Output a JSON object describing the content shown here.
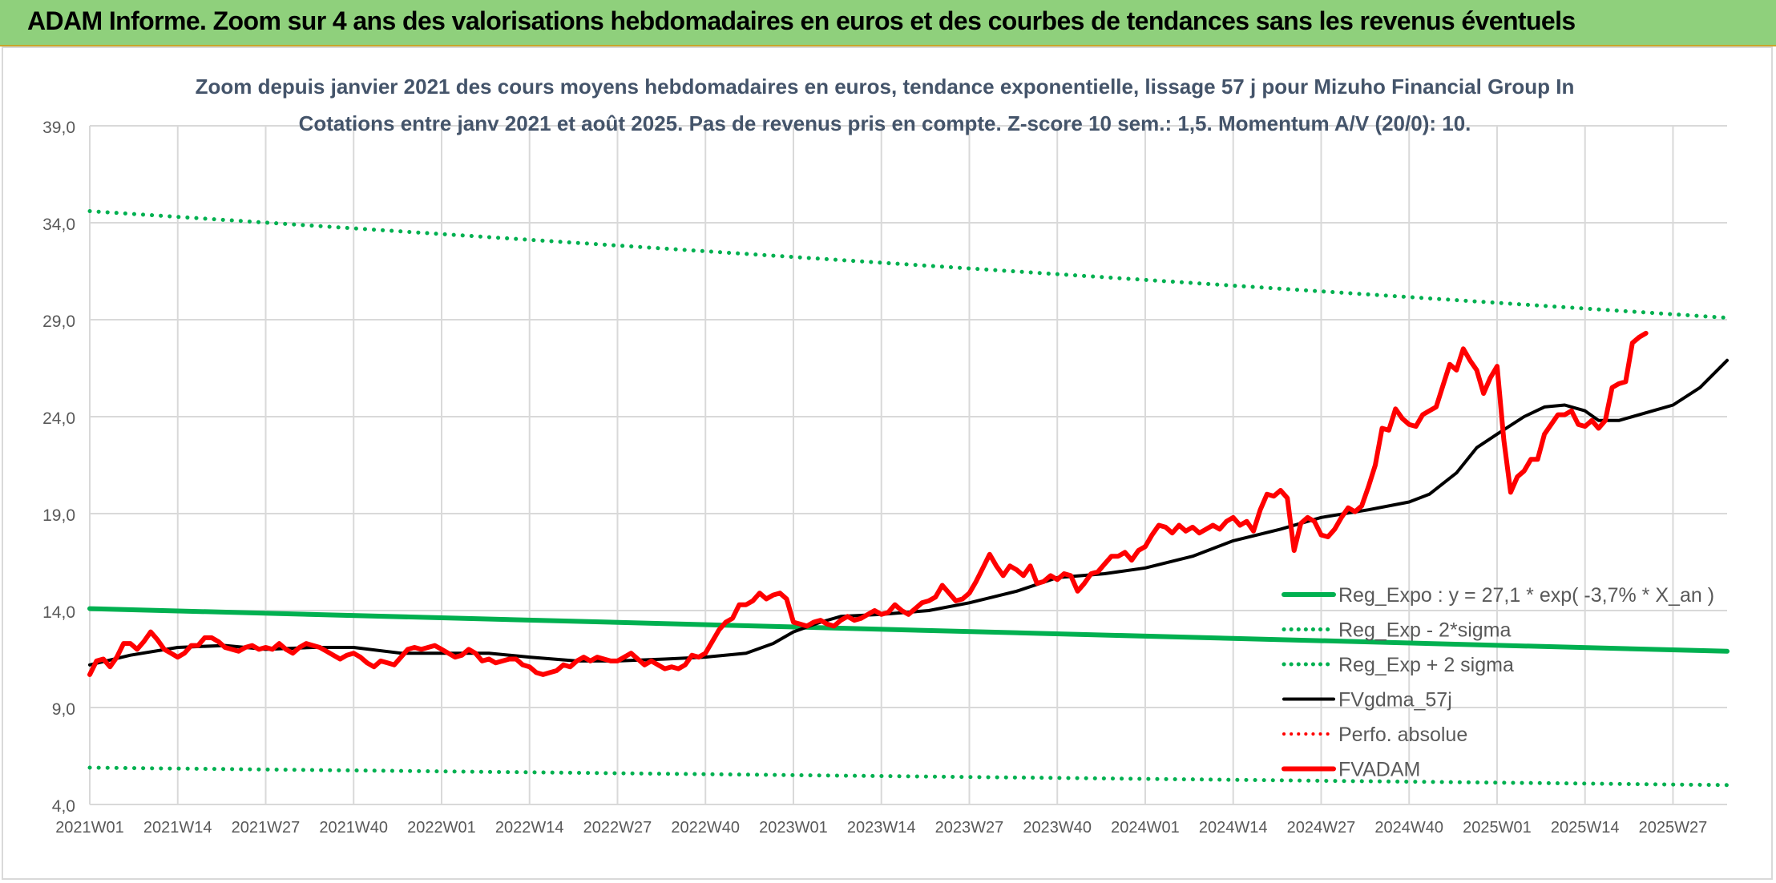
{
  "banner": {
    "title": "ADAM Informe. Zoom sur 4 ans des valorisations hebdomadaires en euros et des courbes de tendances sans les revenus éventuels"
  },
  "colors": {
    "banner_bg": "#8fd07c",
    "green_trend": "#00b050",
    "black_smooth": "#000000",
    "red_price": "#ff0000",
    "grid": "#d9d9d9",
    "axis_text": "#595959",
    "title_text": "#44546a"
  },
  "chart_data": {
    "type": "line",
    "title_line1": "Zoom depuis janvier 2021 des cours moyens hebdomadaires en euros, tendance exponentielle, lissage 57 j pour Mizuho Financial Group In",
    "title_line2": "Cotations entre janv 2021 et août 2025. Pas de revenus pris en compte. Z-score 10 sem.: 1,5. Momentum A/V (20/0): 10.",
    "ylim": [
      4.0,
      39.0
    ],
    "y_ticks": [
      "4,0",
      "9,0",
      "14,0",
      "19,0",
      "24,0",
      "29,0",
      "34,0",
      "39,0"
    ],
    "x_tick_labels": [
      "2021W01",
      "2021W14",
      "2021W27",
      "2021W40",
      "2022W01",
      "2022W14",
      "2022W27",
      "2022W40",
      "2023W01",
      "2023W14",
      "2023W27",
      "2023W40",
      "2024W01",
      "2024W14",
      "2024W27",
      "2024W40",
      "2025W01",
      "2025W14",
      "2025W27"
    ],
    "x_tick_weeks": [
      0,
      13,
      26,
      39,
      52,
      65,
      78,
      91,
      104,
      117,
      130,
      143,
      156,
      169,
      182,
      195,
      208,
      221,
      234
    ],
    "n_weeks": 243,
    "grid": true,
    "legend_position": "bottom-right",
    "series": [
      {
        "name": "Reg_Expo : y = 27,1 * exp( -3,7% *  X_an )",
        "style": "solid",
        "color": "#00b050",
        "width": 6,
        "points": [
          [
            0,
            14.1
          ],
          [
            242,
            11.9
          ]
        ]
      },
      {
        "name": "Reg_Exp - 2*sigma",
        "style": "dotted",
        "color": "#00b050",
        "width": 5,
        "points": [
          [
            0,
            5.9
          ],
          [
            242,
            5.0
          ]
        ]
      },
      {
        "name": "Reg_Exp + 2 sigma",
        "style": "dotted",
        "color": "#00b050",
        "width": 5,
        "points": [
          [
            0,
            34.6
          ],
          [
            242,
            29.1
          ]
        ]
      },
      {
        "name": "FVgdma_57j",
        "style": "solid",
        "color": "#000000",
        "width": 4,
        "points": [
          [
            0,
            11.2
          ],
          [
            6,
            11.7
          ],
          [
            13,
            12.1
          ],
          [
            20,
            12.2
          ],
          [
            26,
            12.0
          ],
          [
            33,
            12.1
          ],
          [
            39,
            12.1
          ],
          [
            46,
            11.8
          ],
          [
            52,
            11.8
          ],
          [
            59,
            11.8
          ],
          [
            65,
            11.6
          ],
          [
            72,
            11.4
          ],
          [
            78,
            11.4
          ],
          [
            85,
            11.5
          ],
          [
            91,
            11.6
          ],
          [
            97,
            11.8
          ],
          [
            101,
            12.3
          ],
          [
            104,
            12.9
          ],
          [
            108,
            13.4
          ],
          [
            111,
            13.7
          ],
          [
            117,
            13.8
          ],
          [
            124,
            14.0
          ],
          [
            130,
            14.4
          ],
          [
            137,
            15.0
          ],
          [
            143,
            15.7
          ],
          [
            150,
            15.9
          ],
          [
            156,
            16.2
          ],
          [
            163,
            16.8
          ],
          [
            169,
            17.6
          ],
          [
            176,
            18.2
          ],
          [
            182,
            18.8
          ],
          [
            189,
            19.2
          ],
          [
            195,
            19.6
          ],
          [
            198,
            20.0
          ],
          [
            202,
            21.1
          ],
          [
            205,
            22.4
          ],
          [
            208,
            23.1
          ],
          [
            212,
            24.0
          ],
          [
            215,
            24.5
          ],
          [
            218,
            24.6
          ],
          [
            221,
            24.3
          ],
          [
            223,
            23.8
          ],
          [
            226,
            23.8
          ],
          [
            229,
            24.1
          ],
          [
            234,
            24.6
          ],
          [
            238,
            25.5
          ],
          [
            242,
            26.9
          ]
        ]
      },
      {
        "name": "Perfo. absolue",
        "style": "dotted",
        "color": "#ff0000",
        "width": 4,
        "points": []
      },
      {
        "name": "FVADAM",
        "style": "solid",
        "color": "#ff0000",
        "width": 6,
        "points": [
          [
            0,
            10.7
          ],
          [
            1,
            11.4
          ],
          [
            2,
            11.5
          ],
          [
            3,
            11.1
          ],
          [
            4,
            11.6
          ],
          [
            5,
            12.3
          ],
          [
            6,
            12.3
          ],
          [
            7,
            12.0
          ],
          [
            8,
            12.4
          ],
          [
            9,
            12.9
          ],
          [
            10,
            12.5
          ],
          [
            11,
            12.0
          ],
          [
            12,
            11.8
          ],
          [
            13,
            11.6
          ],
          [
            14,
            11.8
          ],
          [
            15,
            12.2
          ],
          [
            16,
            12.2
          ],
          [
            17,
            12.6
          ],
          [
            18,
            12.6
          ],
          [
            19,
            12.4
          ],
          [
            20,
            12.1
          ],
          [
            21,
            12.0
          ],
          [
            22,
            11.9
          ],
          [
            23,
            12.1
          ],
          [
            24,
            12.2
          ],
          [
            25,
            12.0
          ],
          [
            26,
            12.1
          ],
          [
            27,
            12.0
          ],
          [
            28,
            12.3
          ],
          [
            29,
            12.0
          ],
          [
            30,
            11.8
          ],
          [
            31,
            12.1
          ],
          [
            32,
            12.3
          ],
          [
            33,
            12.2
          ],
          [
            34,
            12.1
          ],
          [
            35,
            11.9
          ],
          [
            36,
            11.7
          ],
          [
            37,
            11.5
          ],
          [
            38,
            11.7
          ],
          [
            39,
            11.8
          ],
          [
            40,
            11.6
          ],
          [
            41,
            11.3
          ],
          [
            42,
            11.1
          ],
          [
            43,
            11.4
          ],
          [
            44,
            11.3
          ],
          [
            45,
            11.2
          ],
          [
            46,
            11.6
          ],
          [
            47,
            12.0
          ],
          [
            48,
            12.1
          ],
          [
            49,
            12.0
          ],
          [
            50,
            12.1
          ],
          [
            51,
            12.2
          ],
          [
            52,
            12.0
          ],
          [
            53,
            11.8
          ],
          [
            54,
            11.6
          ],
          [
            55,
            11.7
          ],
          [
            56,
            12.0
          ],
          [
            57,
            11.8
          ],
          [
            58,
            11.4
          ],
          [
            59,
            11.5
          ],
          [
            60,
            11.3
          ],
          [
            61,
            11.4
          ],
          [
            62,
            11.5
          ],
          [
            63,
            11.5
          ],
          [
            64,
            11.2
          ],
          [
            65,
            11.1
          ],
          [
            66,
            10.8
          ],
          [
            67,
            10.7
          ],
          [
            68,
            10.8
          ],
          [
            69,
            10.9
          ],
          [
            70,
            11.2
          ],
          [
            71,
            11.1
          ],
          [
            72,
            11.4
          ],
          [
            73,
            11.6
          ],
          [
            74,
            11.4
          ],
          [
            75,
            11.6
          ],
          [
            76,
            11.5
          ],
          [
            77,
            11.4
          ],
          [
            78,
            11.4
          ],
          [
            79,
            11.6
          ],
          [
            80,
            11.8
          ],
          [
            81,
            11.5
          ],
          [
            82,
            11.2
          ],
          [
            83,
            11.4
          ],
          [
            84,
            11.2
          ],
          [
            85,
            11.0
          ],
          [
            86,
            11.1
          ],
          [
            87,
            11.0
          ],
          [
            88,
            11.2
          ],
          [
            89,
            11.7
          ],
          [
            90,
            11.6
          ],
          [
            91,
            11.8
          ],
          [
            92,
            12.4
          ],
          [
            93,
            13.0
          ],
          [
            94,
            13.4
          ],
          [
            95,
            13.6
          ],
          [
            96,
            14.3
          ],
          [
            97,
            14.3
          ],
          [
            98,
            14.5
          ],
          [
            99,
            14.9
          ],
          [
            100,
            14.6
          ],
          [
            101,
            14.8
          ],
          [
            102,
            14.9
          ],
          [
            103,
            14.6
          ],
          [
            104,
            13.4
          ],
          [
            105,
            13.3
          ],
          [
            106,
            13.2
          ],
          [
            107,
            13.4
          ],
          [
            108,
            13.5
          ],
          [
            109,
            13.3
          ],
          [
            110,
            13.2
          ],
          [
            111,
            13.5
          ],
          [
            112,
            13.7
          ],
          [
            113,
            13.5
          ],
          [
            114,
            13.6
          ],
          [
            115,
            13.8
          ],
          [
            116,
            14.0
          ],
          [
            117,
            13.8
          ],
          [
            118,
            13.9
          ],
          [
            119,
            14.3
          ],
          [
            120,
            14.0
          ],
          [
            121,
            13.8
          ],
          [
            122,
            14.1
          ],
          [
            123,
            14.4
          ],
          [
            124,
            14.5
          ],
          [
            125,
            14.7
          ],
          [
            126,
            15.3
          ],
          [
            127,
            14.9
          ],
          [
            128,
            14.5
          ],
          [
            129,
            14.6
          ],
          [
            130,
            14.9
          ],
          [
            131,
            15.5
          ],
          [
            132,
            16.2
          ],
          [
            133,
            16.9
          ],
          [
            134,
            16.3
          ],
          [
            135,
            15.8
          ],
          [
            136,
            16.3
          ],
          [
            137,
            16.1
          ],
          [
            138,
            15.8
          ],
          [
            139,
            16.3
          ],
          [
            140,
            15.4
          ],
          [
            141,
            15.5
          ],
          [
            142,
            15.8
          ],
          [
            143,
            15.6
          ],
          [
            144,
            15.9
          ],
          [
            145,
            15.8
          ],
          [
            146,
            15.0
          ],
          [
            147,
            15.4
          ],
          [
            148,
            15.9
          ],
          [
            149,
            16.0
          ],
          [
            150,
            16.4
          ],
          [
            151,
            16.8
          ],
          [
            152,
            16.8
          ],
          [
            153,
            17.0
          ],
          [
            154,
            16.6
          ],
          [
            155,
            17.1
          ],
          [
            156,
            17.3
          ],
          [
            157,
            17.9
          ],
          [
            158,
            18.4
          ],
          [
            159,
            18.3
          ],
          [
            160,
            18.0
          ],
          [
            161,
            18.4
          ],
          [
            162,
            18.1
          ],
          [
            163,
            18.3
          ],
          [
            164,
            18.0
          ],
          [
            165,
            18.2
          ],
          [
            166,
            18.4
          ],
          [
            167,
            18.2
          ],
          [
            168,
            18.6
          ],
          [
            169,
            18.8
          ],
          [
            170,
            18.4
          ],
          [
            171,
            18.6
          ],
          [
            172,
            18.1
          ],
          [
            173,
            19.2
          ],
          [
            174,
            20.0
          ],
          [
            175,
            19.9
          ],
          [
            176,
            20.2
          ],
          [
            177,
            19.8
          ],
          [
            178,
            17.1
          ],
          [
            179,
            18.5
          ],
          [
            180,
            18.8
          ],
          [
            181,
            18.6
          ],
          [
            182,
            17.9
          ],
          [
            183,
            17.8
          ],
          [
            184,
            18.2
          ],
          [
            185,
            18.8
          ],
          [
            186,
            19.3
          ],
          [
            187,
            19.1
          ],
          [
            188,
            19.4
          ],
          [
            189,
            20.4
          ],
          [
            190,
            21.5
          ],
          [
            191,
            23.4
          ],
          [
            192,
            23.3
          ],
          [
            193,
            24.4
          ],
          [
            194,
            23.9
          ],
          [
            195,
            23.6
          ],
          [
            196,
            23.5
          ],
          [
            197,
            24.1
          ],
          [
            198,
            24.3
          ],
          [
            199,
            24.5
          ],
          [
            200,
            25.6
          ],
          [
            201,
            26.7
          ],
          [
            202,
            26.4
          ],
          [
            203,
            27.5
          ],
          [
            204,
            26.9
          ],
          [
            205,
            26.4
          ],
          [
            206,
            25.2
          ],
          [
            207,
            26.0
          ],
          [
            208,
            26.6
          ],
          [
            209,
            22.8
          ],
          [
            210,
            20.1
          ],
          [
            211,
            20.9
          ],
          [
            212,
            21.2
          ],
          [
            213,
            21.8
          ],
          [
            214,
            21.8
          ],
          [
            215,
            23.1
          ],
          [
            216,
            23.6
          ],
          [
            217,
            24.1
          ],
          [
            218,
            24.1
          ],
          [
            219,
            24.3
          ],
          [
            220,
            23.6
          ],
          [
            221,
            23.5
          ],
          [
            222,
            23.8
          ],
          [
            223,
            23.4
          ],
          [
            224,
            23.8
          ],
          [
            225,
            25.5
          ],
          [
            226,
            25.7
          ],
          [
            227,
            25.8
          ],
          [
            228,
            27.8
          ],
          [
            229,
            28.1
          ],
          [
            230,
            28.3
          ]
        ]
      }
    ]
  }
}
